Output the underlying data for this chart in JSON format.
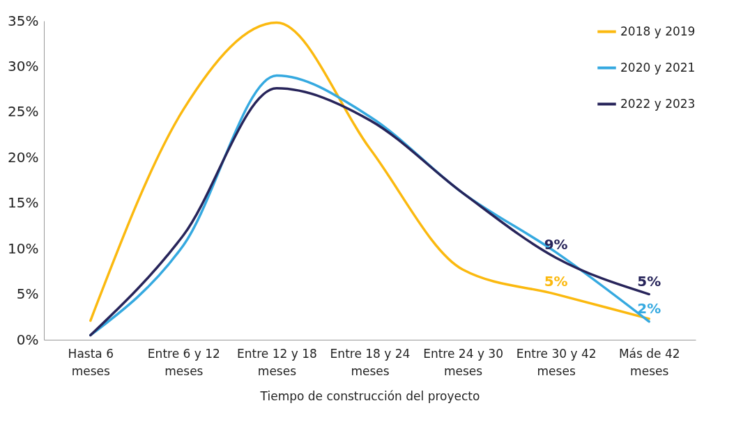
{
  "chart_data": {
    "type": "line",
    "xlabel": "Tiempo de construcción del proyecto",
    "categories": [
      "Hasta 6 meses",
      "Entre 6 y 12 meses",
      "Entre 12 y 18 meses",
      "Entre 18 y 24 meses",
      "Entre 24 y 30 meses",
      "Entre 30 y 42 meses",
      "Más de 42 meses"
    ],
    "series": [
      {
        "name": "2018 y 2019",
        "color": "#fbb90f",
        "values": [
          2.1,
          25.3,
          34.8,
          21,
          7.7,
          5,
          2.3
        ],
        "value_labels": [
          null,
          null,
          null,
          null,
          null,
          "5%",
          null
        ]
      },
      {
        "name": "2020 y 2021",
        "color": "#35a9e0",
        "values": [
          0.5,
          10.4,
          29,
          24.5,
          16.1,
          9.6,
          2
        ],
        "value_labels": [
          null,
          null,
          null,
          null,
          null,
          null,
          "2%"
        ]
      },
      {
        "name": "2022 y 2023",
        "color": "#27245a",
        "values": [
          0.5,
          11.5,
          27.6,
          24.1,
          16.1,
          9,
          5
        ],
        "value_labels": [
          null,
          null,
          null,
          null,
          null,
          "9%",
          "5%"
        ]
      }
    ],
    "ylim": [
      0,
      35
    ],
    "yticks": [
      {
        "value": 0,
        "label": "0%"
      },
      {
        "value": 5,
        "label": "5%"
      },
      {
        "value": 10,
        "label": "10%"
      },
      {
        "value": 15,
        "label": "15%"
      },
      {
        "value": 20,
        "label": "20%"
      },
      {
        "value": 25,
        "label": "25%"
      },
      {
        "value": 30,
        "label": "30%"
      },
      {
        "value": 35,
        "label": "35%"
      }
    ],
    "grid": false,
    "legend": "top right",
    "marker": "none",
    "line_style": "solid"
  }
}
